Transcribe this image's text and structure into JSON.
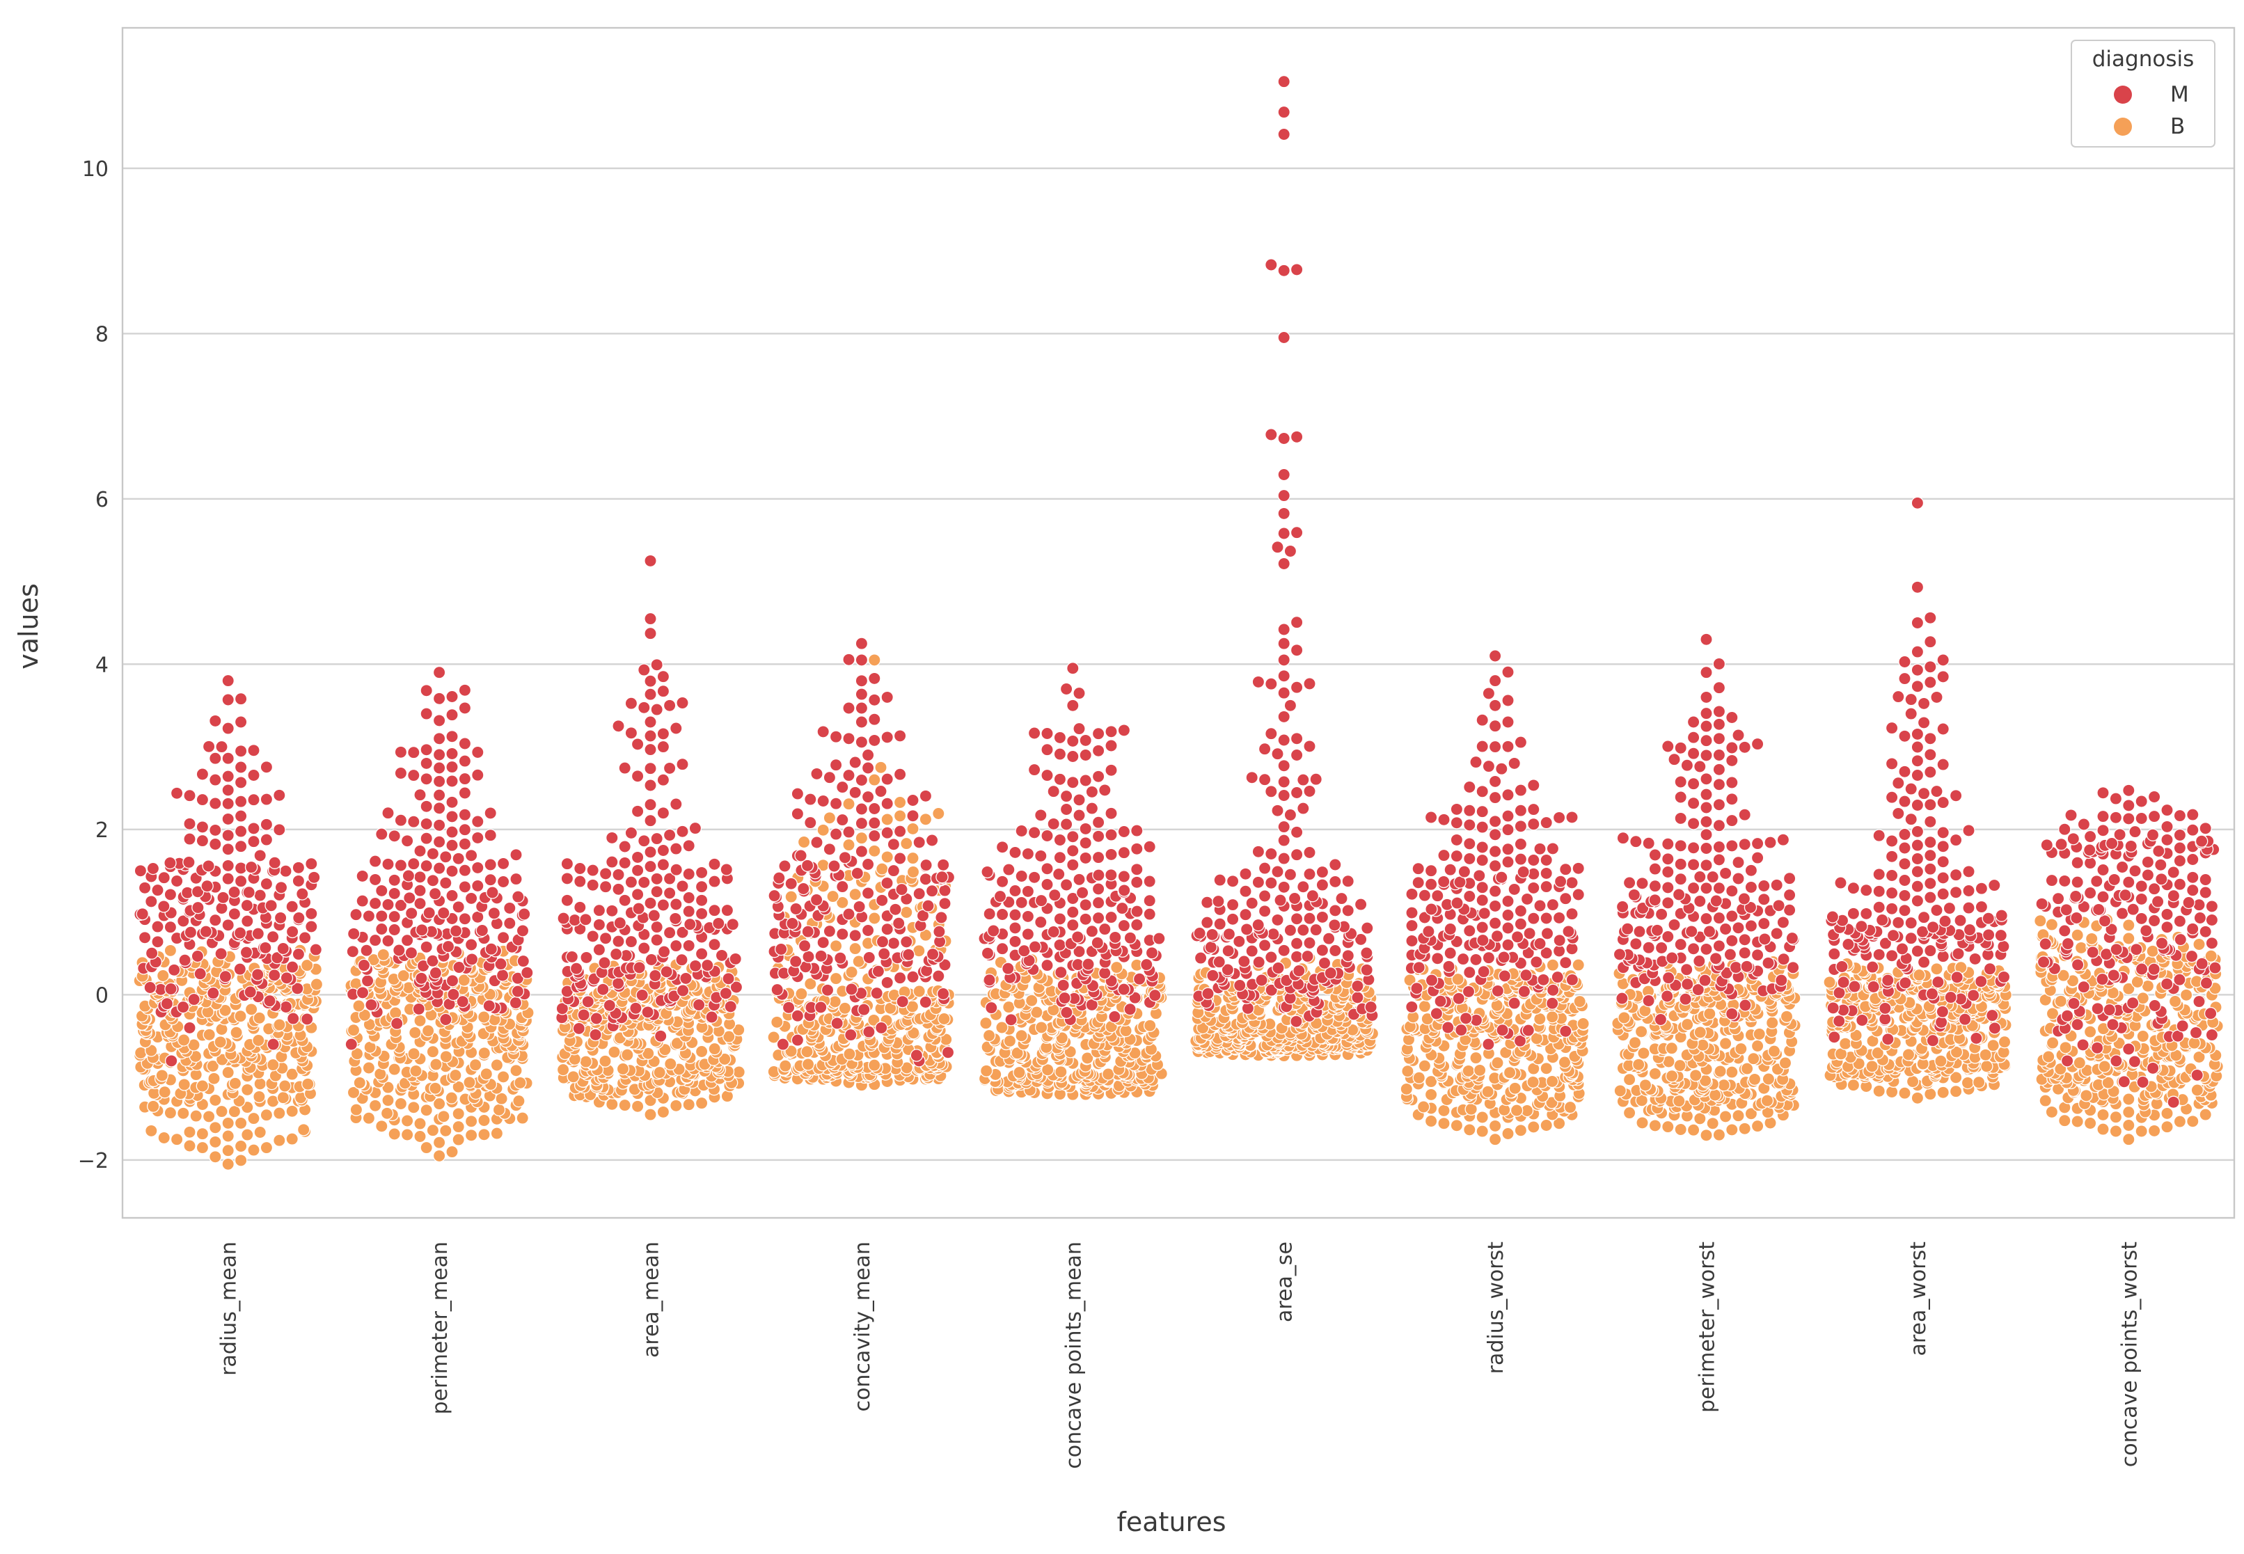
{
  "chart_data": {
    "type": "swarm",
    "title": "",
    "xlabel": "features",
    "ylabel": "values",
    "ylim": [
      -2.7,
      11.7
    ],
    "yticks": [
      -2,
      0,
      2,
      4,
      6,
      8,
      10
    ],
    "ytick_labels": [
      "−2",
      "0",
      "2",
      "4",
      "6",
      "8",
      "10"
    ],
    "grid": true,
    "legend_position": "top-right",
    "legend": {
      "title": "diagnosis",
      "entries": [
        {
          "label": "M",
          "color": "#d9434a"
        },
        {
          "label": "B",
          "color": "#f5a057"
        }
      ]
    },
    "categories": [
      "radius_mean",
      "perimeter_mean",
      "area_mean",
      "concavity_mean",
      "concave points_mean",
      "area_se",
      "radius_worst",
      "perimeter_worst",
      "area_worst",
      "concave points_worst"
    ],
    "series": [
      {
        "name": "M",
        "color": "#d9434a",
        "distribution": [
          {
            "min": -0.5,
            "q1": 0.5,
            "median": 1.0,
            "q3": 1.6,
            "max": 4.0,
            "outliers": [
              3.8,
              3.3,
              3.0,
              2.6,
              -0.8,
              -0.6,
              -0.4
            ]
          },
          {
            "min": -0.5,
            "q1": 0.5,
            "median": 1.0,
            "q3": 1.6,
            "max": 4.0,
            "outliers": [
              3.9,
              3.4,
              3.1,
              2.8,
              -0.6,
              -0.3
            ]
          },
          {
            "min": -0.6,
            "q1": 0.3,
            "median": 0.9,
            "q3": 1.6,
            "max": 5.25,
            "outliers": [
              5.25,
              4.55,
              3.85,
              3.5,
              3.3,
              3.0,
              -0.5
            ]
          },
          {
            "min": -0.8,
            "q1": 0.4,
            "median": 1.0,
            "q3": 1.6,
            "max": 4.25,
            "outliers": [
              4.25,
              4.05,
              3.6,
              3.3,
              3.1,
              2.9,
              -0.8,
              -0.4
            ]
          },
          {
            "min": -0.4,
            "q1": 0.4,
            "median": 0.9,
            "q3": 1.5,
            "max": 3.95,
            "outliers": [
              3.95,
              3.7,
              3.5,
              3.2,
              2.9,
              -0.3
            ]
          },
          {
            "min": -0.4,
            "q1": 0.3,
            "median": 0.8,
            "q3": 1.5,
            "max": 11.05,
            "outliers": [
              11.05,
              10.68,
              4.25,
              4.05,
              3.5,
              3.1,
              2.9,
              2.6
            ]
          },
          {
            "min": -0.6,
            "q1": 0.5,
            "median": 1.0,
            "q3": 1.6,
            "max": 4.1,
            "outliers": [
              4.1,
              3.5,
              3.3,
              3.0,
              2.8,
              -0.6
            ]
          },
          {
            "min": -0.3,
            "q1": 0.5,
            "median": 1.0,
            "q3": 1.6,
            "max": 4.3,
            "outliers": [
              4.3,
              3.9,
              3.6,
              3.3,
              3.1,
              2.9,
              -0.3
            ]
          },
          {
            "min": -0.6,
            "q1": 0.5,
            "median": 0.9,
            "q3": 1.5,
            "max": 5.95,
            "outliers": [
              5.95,
              4.5,
              4.15,
              4.05,
              3.6,
              3.4,
              3.1
            ]
          },
          {
            "min": -1.3,
            "q1": 0.5,
            "median": 1.1,
            "q3": 1.7,
            "max": 2.7,
            "outliers": [
              -1.3,
              -0.8,
              -0.5,
              -0.3
            ]
          }
        ]
      },
      {
        "name": "B",
        "color": "#f5a057",
        "distribution": [
          {
            "min": -2.05,
            "q1": -1.0,
            "median": -0.5,
            "q3": 0.0,
            "max": 0.6,
            "outliers": [
              -2.05,
              -1.85,
              -1.75
            ]
          },
          {
            "min": -1.95,
            "q1": -1.05,
            "median": -0.5,
            "q3": 0.0,
            "max": 0.55,
            "outliers": [
              -1.95,
              -1.85,
              -1.7
            ]
          },
          {
            "min": -1.45,
            "q1": -0.9,
            "median": -0.45,
            "q3": -0.1,
            "max": 0.45,
            "outliers": [
              -1.45
            ]
          },
          {
            "min": -1.1,
            "q1": -0.85,
            "median": -0.4,
            "q3": 0.05,
            "max": 2.75,
            "outliers": [
              4.05,
              2.75,
              2.6
            ]
          },
          {
            "min": -1.25,
            "q1": -0.95,
            "median": -0.45,
            "q3": 0.0,
            "max": 0.5,
            "outliers": []
          },
          {
            "min": -0.75,
            "q1": -0.6,
            "median": -0.4,
            "q3": -0.1,
            "max": 0.45,
            "outliers": []
          },
          {
            "min": -1.75,
            "q1": -1.05,
            "median": -0.5,
            "q3": -0.05,
            "max": 0.4,
            "outliers": [
              -1.75,
              -1.6
            ]
          },
          {
            "min": -1.7,
            "q1": -1.05,
            "median": -0.5,
            "q3": -0.05,
            "max": 0.45,
            "outliers": [
              -1.7,
              -1.55
            ]
          },
          {
            "min": -1.25,
            "q1": -0.85,
            "median": -0.4,
            "q3": -0.05,
            "max": 0.4,
            "outliers": [
              -1.25
            ]
          },
          {
            "min": -1.75,
            "q1": -1.0,
            "median": -0.4,
            "q3": 0.2,
            "max": 1.0,
            "outliers": [
              -1.75
            ]
          }
        ]
      }
    ]
  }
}
